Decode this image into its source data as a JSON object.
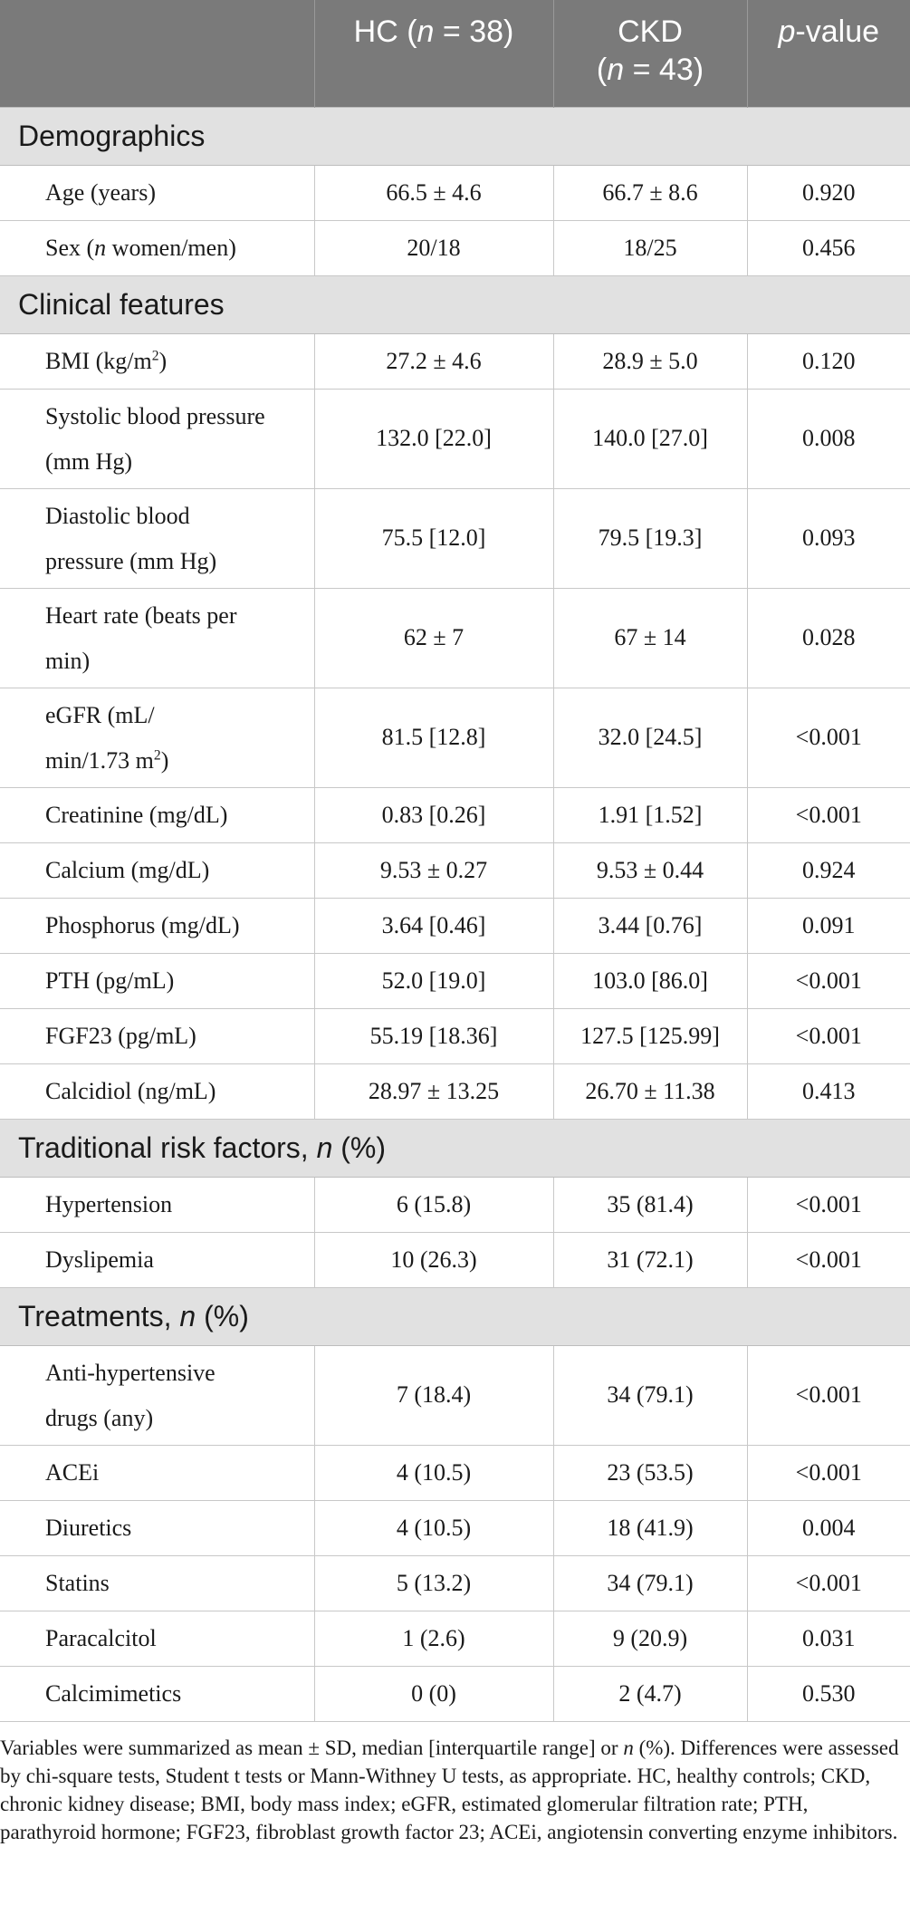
{
  "header": {
    "col1": "",
    "col2_prefix": "HC (",
    "col2_n": "n",
    "col2_suffix": " = 38)",
    "col3_name": "CKD",
    "col3_open": "(",
    "col3_n": "n",
    "col3_suffix": " = 43)",
    "col4_p": "p",
    "col4_suffix": "-value"
  },
  "sections": {
    "demographics": "Demographics",
    "clinical": "Clinical features",
    "risk_prefix": "Traditional risk factors, ",
    "risk_n": "n",
    "risk_suffix": " (%)",
    "treat_prefix": "Treatments, ",
    "treat_n": "n",
    "treat_suffix": " (%)"
  },
  "rows": {
    "age": {
      "label": "Age (years)",
      "hc": "66.5 ± 4.6",
      "ckd": "66.7 ± 8.6",
      "p": "0.920"
    },
    "sex": {
      "label_pre": "Sex (",
      "label_n": "n",
      "label_post": " women/men)",
      "hc": "20/18",
      "ckd": "18/25",
      "p": "0.456"
    },
    "bmi": {
      "label_pre": "BMI (kg/m",
      "label_sup": "2",
      "label_post": ")",
      "hc": "27.2 ± 4.6",
      "ckd": "28.9 ± 5.0",
      "p": "0.120"
    },
    "sbp": {
      "label_l1": "Systolic blood pressure",
      "label_l2": "(mm Hg)",
      "hc": "132.0 [22.0]",
      "ckd": "140.0 [27.0]",
      "p": "0.008"
    },
    "dbp": {
      "label_l1": "Diastolic blood",
      "label_l2": "pressure (mm Hg)",
      "hc": "75.5 [12.0]",
      "ckd": "79.5 [19.3]",
      "p": "0.093"
    },
    "hr": {
      "label_l1": "Heart rate (beats per",
      "label_l2": "min)",
      "hc": "62 ± 7",
      "ckd": "67 ± 14",
      "p": "0.028"
    },
    "egfr": {
      "label_l1": "eGFR (mL/",
      "label_l2_pre": "min/1.73 m",
      "label_l2_sup": "2",
      "label_l2_post": ")",
      "hc": "81.5 [12.8]",
      "ckd": "32.0 [24.5]",
      "p": "<0.001"
    },
    "creat": {
      "label": "Creatinine (mg/dL)",
      "hc": "0.83 [0.26]",
      "ckd": "1.91 [1.52]",
      "p": "<0.001"
    },
    "calcium": {
      "label": "Calcium (mg/dL)",
      "hc": "9.53 ± 0.27",
      "ckd": "9.53 ± 0.44",
      "p": "0.924"
    },
    "phos": {
      "label": "Phosphorus (mg/dL)",
      "hc": "3.64 [0.46]",
      "ckd": "3.44 [0.76]",
      "p": "0.091"
    },
    "pth": {
      "label": "PTH (pg/mL)",
      "hc": "52.0 [19.0]",
      "ckd": "103.0 [86.0]",
      "p": "<0.001"
    },
    "fgf23": {
      "label": "FGF23 (pg/mL)",
      "hc": "55.19 [18.36]",
      "ckd": "127.5 [125.99]",
      "p": "<0.001"
    },
    "calcidiol": {
      "label": "Calcidiol (ng/mL)",
      "hc": "28.97 ± 13.25",
      "ckd": "26.70 ± 11.38",
      "p": "0.413"
    },
    "htn": {
      "label": "Hypertension",
      "hc": "6 (15.8)",
      "ckd": "35 (81.4)",
      "p": "<0.001"
    },
    "dys": {
      "label": "Dyslipemia",
      "hc": "10 (26.3)",
      "ckd": "31 (72.1)",
      "p": "<0.001"
    },
    "antihtn": {
      "label_l1": "Anti-hypertensive",
      "label_l2": "drugs (any)",
      "hc": "7 (18.4)",
      "ckd": "34 (79.1)",
      "p": "<0.001"
    },
    "acei": {
      "label": "ACEi",
      "hc": "4 (10.5)",
      "ckd": "23 (53.5)",
      "p": "<0.001"
    },
    "diur": {
      "label": "Diuretics",
      "hc": "4 (10.5)",
      "ckd": "18 (41.9)",
      "p": "0.004"
    },
    "statins": {
      "label": "Statins",
      "hc": "5 (13.2)",
      "ckd": "34 (79.1)",
      "p": "<0.001"
    },
    "parac": {
      "label": "Paracalcitol",
      "hc": "1 (2.6)",
      "ckd": "9 (20.9)",
      "p": "0.031"
    },
    "calcimim": {
      "label": "Calcimimetics",
      "hc": "0 (0)",
      "ckd": "2 (4.7)",
      "p": "0.530"
    }
  },
  "footnote": {
    "pre": "Variables were summarized as mean ± SD, median [interquartile range] or ",
    "n": "n",
    "post": " (%). Differences were assessed by chi-square tests, Student t tests or Mann-Withney U tests, as appropriate. HC, healthy controls; CKD, chronic kidney disease; BMI, body mass index; eGFR, estimated glomerular filtration rate; PTH, parathyroid hormone; FGF23, fibroblast growth factor 23; ACEi, angiotensin converting enzyme inhibitors."
  }
}
